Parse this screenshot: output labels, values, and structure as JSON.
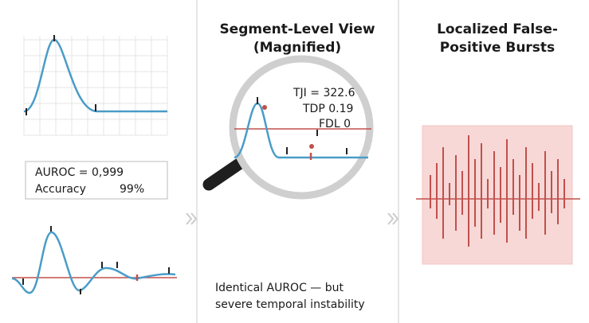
{
  "left_panel": {
    "metrics": {
      "auroc": "AUROC = 0,999",
      "accuracy_label": "Accuracy",
      "accuracy_value": "99%"
    }
  },
  "middle_panel": {
    "title": [
      "Segment-Level View",
      "(Magnified)"
    ],
    "stats": [
      "TJI = 322.6",
      "TDP 0.19",
      "FDL 0"
    ],
    "caption": [
      "Identical AUROC — but",
      "severe temporal instability"
    ]
  },
  "right_panel": {
    "title": [
      "Localized False-",
      "Positive Bursts"
    ]
  }
}
